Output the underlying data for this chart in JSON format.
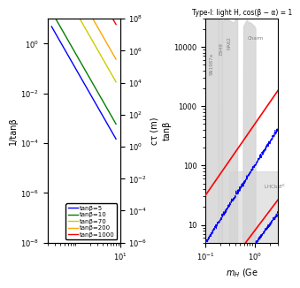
{
  "left_panel": {
    "title": "",
    "xlabel": "",
    "ylabel_left": "1/tanβ",
    "ylabel_right": "cτ (m)",
    "xlim": [
      0.2,
      10
    ],
    "ylim_left": [
      1e-08,
      1.0
    ],
    "ylim_right": [
      1e-06,
      100000000.0
    ],
    "tan_beta_values": [
      5,
      10,
      70,
      200,
      1000
    ],
    "colors": [
      "blue",
      "green",
      "#cccc00",
      "orange",
      "red"
    ],
    "legend_labels": [
      "tanβ=5",
      "tanβ=10",
      "tanβ=70",
      "tanβ=200",
      "tanβ=1000"
    ]
  },
  "right_panel": {
    "title": "Type-I: light H, cos(β − α) = 1",
    "xlabel": "m_H (Ge",
    "ylabel": "tanβ",
    "xlim": [
      0.1,
      3
    ],
    "ylim": [
      5,
      30000
    ],
    "labels": [
      "SN1987a",
      "E949",
      "NA62",
      "Charm",
      "LHCb B°"
    ]
  }
}
